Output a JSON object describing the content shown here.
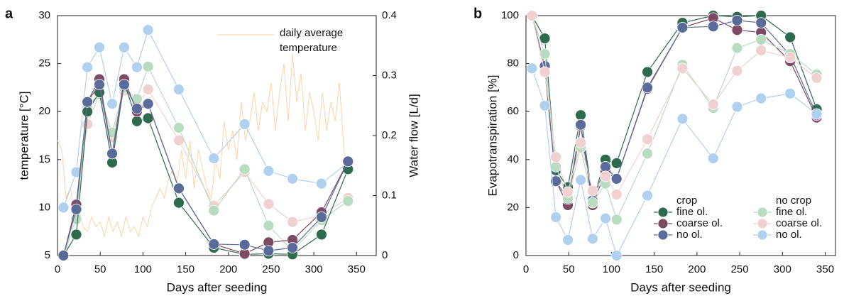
{
  "chart_data": [
    {
      "type": "line",
      "panel_label": "a",
      "xlabel": "Days after seeding",
      "ylabel": "temperature [°C]",
      "y2label": "Water flow [L/d]",
      "xlim": [
        0,
        373
      ],
      "xticks": [
        0,
        50,
        100,
        150,
        200,
        250,
        300,
        350
      ],
      "ylim": [
        5,
        30
      ],
      "yticks": [
        5,
        10,
        15,
        20,
        25,
        30
      ],
      "y2lim": [
        0,
        0.4
      ],
      "y2ticks": [
        0,
        0.1,
        0.2,
        0.3,
        0.4
      ],
      "x": [
        7,
        22,
        35,
        49,
        64,
        78,
        93,
        106,
        142,
        183,
        219,
        247,
        275,
        309,
        340
      ],
      "legend_position": "upper center",
      "series": [
        {
          "name": "daily average temperature",
          "color": "#fbd3a8",
          "markers": false,
          "axis": "y",
          "x": [
            0,
            5,
            10,
            15,
            20,
            25,
            30,
            35,
            40,
            45,
            50,
            55,
            60,
            65,
            70,
            75,
            80,
            85,
            90,
            95,
            100,
            105,
            110,
            115,
            120,
            125,
            130,
            135,
            140,
            145,
            150,
            155,
            160,
            165,
            170,
            175,
            180,
            185,
            190,
            195,
            200,
            205,
            210,
            215,
            220,
            225,
            230,
            235,
            240,
            245,
            250,
            255,
            260,
            265,
            270,
            275,
            280,
            285,
            290,
            295,
            300,
            305,
            310,
            315,
            320,
            325,
            330,
            335,
            340
          ],
          "values": [
            17,
            16,
            11,
            12,
            9.5,
            10,
            8,
            7.5,
            9,
            8,
            8.5,
            7,
            9,
            7.5,
            8.5,
            7,
            9,
            7.5,
            8,
            7,
            9,
            8,
            10,
            11,
            12,
            11,
            13,
            14,
            12.5,
            16,
            13,
            17,
            12,
            16,
            14,
            12,
            11,
            15,
            13,
            19,
            16,
            18,
            15,
            21,
            17,
            19,
            22,
            18,
            21,
            20,
            23,
            18,
            22,
            25,
            19,
            26,
            21,
            24,
            18,
            22,
            20,
            17,
            22,
            18,
            21,
            19,
            23,
            16,
            14
          ]
        },
        {
          "color": "#b0d0f0",
          "markers": true,
          "axis": "y2",
          "values": [
            0.08,
            0.139,
            0.314,
            0.347,
            0.253,
            0.347,
            0.314,
            0.376,
            0.277,
            0.162,
            0.219,
            0.141,
            0.128,
            0.12,
            0.155
          ]
        },
        {
          "color": "#f0d0d0",
          "markers": true,
          "axis": "y2",
          "values": [
            0,
            0.08,
            0.219,
            0.269,
            0.197,
            0.275,
            0.25,
            0.277,
            0.192,
            0.083,
            0.139,
            0.086,
            0.056,
            0.067,
            0.096
          ]
        },
        {
          "color": "#b8dcc0",
          "markers": true,
          "axis": "y2",
          "values": [
            0,
            0.061,
            0.248,
            0.269,
            0.205,
            0.28,
            0.261,
            0.315,
            0.213,
            0.075,
            0.144,
            0.05,
            0.008,
            0.059,
            0.091
          ]
        },
        {
          "color": "#2e6b4e",
          "markers": true,
          "axis": "y2",
          "values": [
            0,
            0.035,
            0.24,
            0.272,
            0.155,
            0.288,
            0.224,
            0.229,
            0.088,
            0.013,
            0.002,
            0.003,
            0.002,
            0.035,
            0.144
          ]
        },
        {
          "color": "#7d4a63",
          "markers": true,
          "axis": "y2",
          "values": [
            0,
            0.085,
            0.256,
            0.294,
            0.17,
            0.294,
            0.24,
            0.253,
            0.112,
            0.019,
            0.003,
            0.022,
            0.026,
            0.072,
            0.157
          ]
        },
        {
          "color": "#5a6b9a",
          "markers": true,
          "axis": "y2",
          "values": [
            0,
            0.077,
            0.256,
            0.285,
            0.17,
            0.285,
            0.245,
            0.253,
            0.112,
            0.019,
            0.018,
            0.008,
            0.013,
            0.064,
            0.157
          ]
        }
      ]
    },
    {
      "type": "line",
      "panel_label": "b",
      "xlabel": "Days after seeding",
      "ylabel": "Evapotranspiration [%]",
      "xlim": [
        0,
        362
      ],
      "xticks": [
        0,
        50,
        100,
        150,
        200,
        250,
        300,
        350
      ],
      "ylim": [
        0,
        100
      ],
      "yticks": [
        0,
        20,
        40,
        60,
        80,
        100
      ],
      "x": [
        7,
        22,
        35,
        49,
        64,
        78,
        93,
        106,
        142,
        183,
        219,
        247,
        275,
        309,
        340
      ],
      "legend_position": "lower right",
      "legend_titles": [
        "crop",
        "no crop"
      ],
      "series": [
        {
          "name": "fine ol.",
          "color": "#2e6b4e",
          "markers": true,
          "values": [
            100,
            90.5,
            35.5,
            28.5,
            58.5,
            23,
            40,
            38.5,
            76.5,
            97,
            100,
            99.5,
            100,
            91,
            61
          ]
        },
        {
          "name": "coarse ol.",
          "color": "#7d4a63",
          "markers": true,
          "values": [
            100,
            77.5,
            31,
            21,
            54,
            21,
            35,
            32,
            69.5,
            95,
            99,
            94,
            93,
            81,
            57.5
          ]
        },
        {
          "name": "no ol.",
          "color": "#5a6b9a",
          "markers": true,
          "values": [
            100,
            79,
            31,
            23.5,
            54.5,
            23,
            37,
            32,
            70,
            95,
            95.5,
            98,
            97,
            83.5,
            58.5
          ]
        },
        {
          "name": "fine ol.",
          "color": "#b8dcc0",
          "markers": true,
          "values": [
            100,
            84,
            37,
            24,
            45,
            22,
            30,
            15,
            42.5,
            79.5,
            61.5,
            86.5,
            90,
            84,
            75.5
          ]
        },
        {
          "name": "coarse ol.",
          "color": "#f0d0d0",
          "markers": true,
          "values": [
            100,
            76.5,
            41,
            26.5,
            47,
            27,
            33,
            25.5,
            48.5,
            78,
            63,
            77,
            85.5,
            82.5,
            74
          ]
        },
        {
          "name": "no ol.",
          "color": "#b0d0f0",
          "markers": true,
          "values": [
            78,
            62.5,
            16,
            6.5,
            31.5,
            7,
            15.5,
            0,
            25,
            57,
            40.5,
            62,
            65.5,
            67.5,
            59
          ]
        }
      ]
    }
  ]
}
